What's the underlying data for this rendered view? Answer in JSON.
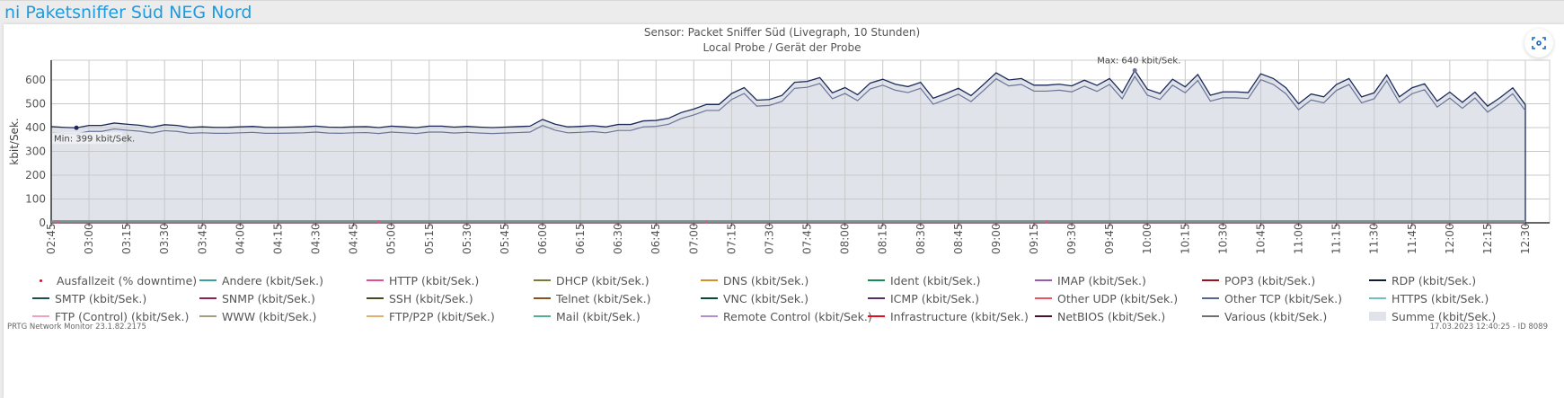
{
  "page": {
    "title": "ni Paketsniffer Süd NEG Nord"
  },
  "chart_header": {
    "line1": "Sensor: Packet Sniffer Süd (Livegraph, 10 Stunden)",
    "line2": "Local Probe / Gerät der Probe",
    "screenshot_icon": "camera-focus-icon"
  },
  "footer": {
    "left": "PRTG Network Monitor 23.1.82.2175",
    "right": "17.03.2023 12:40:25 - ID 8089"
  },
  "chart_data": {
    "type": "area",
    "ylabel": "kbit/Sek.",
    "ylim": [
      0,
      683
    ],
    "yticks": [
      0,
      100,
      200,
      300,
      400,
      500,
      600
    ],
    "grid": true,
    "x_start": "02:45",
    "x_step_minutes": 5,
    "xtick_labels": [
      "02:45",
      "03:00",
      "03:15",
      "03:30",
      "03:45",
      "04:00",
      "04:15",
      "04:30",
      "04:45",
      "05:00",
      "05:15",
      "05:30",
      "05:45",
      "06:00",
      "06:15",
      "06:30",
      "06:45",
      "07:00",
      "07:15",
      "07:30",
      "07:45",
      "08:00",
      "08:15",
      "08:30",
      "08:45",
      "09:00",
      "09:15",
      "09:30",
      "09:45",
      "10:00",
      "10:15",
      "10:30",
      "10:45",
      "11:00",
      "11:15",
      "11:30",
      "11:45",
      "12:00",
      "12:15",
      "12:30"
    ],
    "annotations": {
      "min": "Min: 399 kbit/Sek.",
      "max": "Max: 640 kbit/Sek."
    },
    "series": [
      {
        "name": "Summe (kbit/Sek.)",
        "color": "#1c2a5a",
        "fill": "#e0e3ea",
        "values": [
          404,
          401,
          399,
          409,
          409,
          419,
          414,
          410,
          402,
          412,
          409,
          401,
          403,
          401,
          401,
          403,
          405,
          401,
          401,
          402,
          403,
          406,
          402,
          401,
          403,
          404,
          400,
          406,
          403,
          400,
          406,
          406,
          402,
          405,
          402,
          400,
          402,
          404,
          406,
          434,
          414,
          403,
          405,
          408,
          403,
          413,
          413,
          428,
          430,
          439,
          463,
          478,
          497,
          497,
          543,
          568,
          515,
          518,
          535,
          590,
          594,
          610,
          546,
          568,
          538,
          587,
          603,
          582,
          572,
          590,
          523,
          543,
          565,
          534,
          581,
          630,
          600,
          606,
          578,
          578,
          582,
          575,
          599,
          577,
          606,
          546,
          640,
          561,
          543,
          603,
          571,
          623,
          536,
          550,
          550,
          547,
          626,
          606,
          567,
          500,
          541,
          529,
          581,
          606,
          529,
          546,
          621,
          529,
          567,
          584,
          511,
          549,
          506,
          549,
          490,
          526,
          567,
          496
        ]
      },
      {
        "name": "Other TCP (kbit/Sek.)",
        "color": "#6a7498",
        "values": [
          379,
          376,
          374,
          384,
          384,
          394,
          389,
          385,
          377,
          387,
          384,
          376,
          378,
          376,
          376,
          378,
          380,
          376,
          376,
          377,
          378,
          381,
          377,
          376,
          378,
          379,
          375,
          381,
          378,
          375,
          381,
          381,
          377,
          380,
          377,
          375,
          377,
          379,
          381,
          409,
          389,
          378,
          380,
          383,
          378,
          388,
          388,
          403,
          405,
          414,
          438,
          453,
          472,
          472,
          518,
          543,
          490,
          493,
          510,
          565,
          569,
          585,
          521,
          543,
          513,
          562,
          578,
          557,
          547,
          565,
          498,
          518,
          540,
          509,
          556,
          605,
          575,
          581,
          553,
          553,
          557,
          550,
          574,
          552,
          581,
          521,
          615,
          536,
          518,
          578,
          546,
          598,
          511,
          525,
          525,
          522,
          601,
          581,
          542,
          475,
          516,
          504,
          556,
          581,
          504,
          521,
          596,
          504,
          542,
          559,
          486,
          524,
          481,
          524,
          465,
          501,
          542,
          471
        ]
      },
      {
        "name": "Andere (kbit/Sek.)",
        "color": "#3aa0a0",
        "constant": 8
      },
      {
        "name": "Mail (kbit/Sek.)",
        "color": "#50b090",
        "constant": 6
      },
      {
        "name": "HTTP (kbit/Sek.)",
        "color": "#e05090",
        "constant": 2
      }
    ],
    "legend": [
      {
        "label": "Ausfallzeit (% downtime)",
        "color": "#d01020",
        "kind": "dot"
      },
      {
        "label": "Andere (kbit/Sek.)",
        "color": "#3aa0a0"
      },
      {
        "label": "HTTP (kbit/Sek.)",
        "color": "#e05090"
      },
      {
        "label": "DHCP (kbit/Sek.)",
        "color": "#7a7a3a"
      },
      {
        "label": "DNS (kbit/Sek.)",
        "color": "#d0902a"
      },
      {
        "label": "Ident (kbit/Sek.)",
        "color": "#1a8a5a"
      },
      {
        "label": "IMAP (kbit/Sek.)",
        "color": "#9a5ab0"
      },
      {
        "label": "POP3 (kbit/Sek.)",
        "color": "#a01020"
      },
      {
        "label": "RDP (kbit/Sek.)",
        "color": "#101a3a"
      },
      {
        "label": "SMTP (kbit/Sek.)",
        "color": "#1a5050"
      },
      {
        "label": "SNMP (kbit/Sek.)",
        "color": "#902050"
      },
      {
        "label": "SSH (kbit/Sek.)",
        "color": "#4a4a20"
      },
      {
        "label": "Telnet (kbit/Sek.)",
        "color": "#8a5020"
      },
      {
        "label": "VNC (kbit/Sek.)",
        "color": "#0a4a30"
      },
      {
        "label": "ICMP (kbit/Sek.)",
        "color": "#5a2a6a"
      },
      {
        "label": "Other UDP (kbit/Sek.)",
        "color": "#f05060"
      },
      {
        "label": "Other TCP (kbit/Sek.)",
        "color": "#5a6490"
      },
      {
        "label": "HTTPS (kbit/Sek.)",
        "color": "#70c0c0"
      },
      {
        "label": "FTP (Control) (kbit/Sek.)",
        "color": "#f0a0c0"
      },
      {
        "label": "WWW (kbit/Sek.)",
        "color": "#a0a080"
      },
      {
        "label": "FTP/P2P (kbit/Sek.)",
        "color": "#e0b070"
      },
      {
        "label": "Mail (kbit/Sek.)",
        "color": "#50b090"
      },
      {
        "label": "Remote Control (kbit/Sek.)",
        "color": "#b090d0"
      },
      {
        "label": "Infrastructure (kbit/Sek.)",
        "color": "#e01020"
      },
      {
        "label": "NetBIOS (kbit/Sek.)",
        "color": "#4a1030"
      },
      {
        "label": "Various (kbit/Sek.)",
        "color": "#707070"
      },
      {
        "label": "Summe (kbit/Sek.)",
        "color": "#e0e3ea",
        "kind": "box"
      }
    ]
  }
}
